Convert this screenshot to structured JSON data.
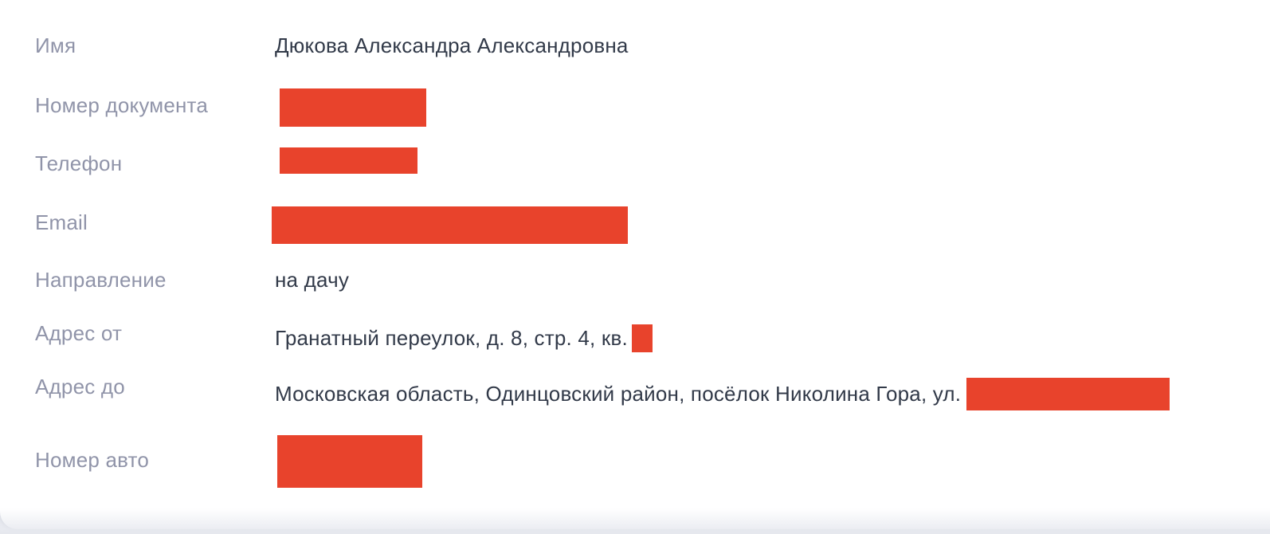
{
  "colors": {
    "redaction": "#E8432C",
    "label": "#9094A9",
    "value": "#323A49",
    "page_bg": "#E8EAF0",
    "card_bg": "#FFFFFF"
  },
  "fields": [
    {
      "key": "name",
      "label": "Имя",
      "value": "Дюкова Александра Александровна",
      "redacted": false
    },
    {
      "key": "document_number",
      "label": "Номер документа",
      "value": "",
      "redacted": true
    },
    {
      "key": "phone",
      "label": "Телефон",
      "value": "",
      "redacted": true
    },
    {
      "key": "email",
      "label": "Email",
      "value": "",
      "redacted": true
    },
    {
      "key": "direction",
      "label": "Направление",
      "value": "на дачу",
      "redacted": false
    },
    {
      "key": "address_from",
      "label": "Адрес от",
      "value": "Гранатный переулок, д. 8, стр. 4, кв.",
      "redacted": "suffix"
    },
    {
      "key": "address_to",
      "label": "Адрес до",
      "value": "Московская область, Одинцовский район, посёлок Николина Гора, ул.",
      "redacted": "suffix"
    },
    {
      "key": "car_number",
      "label": "Номер авто",
      "value": "",
      "redacted": true
    }
  ]
}
